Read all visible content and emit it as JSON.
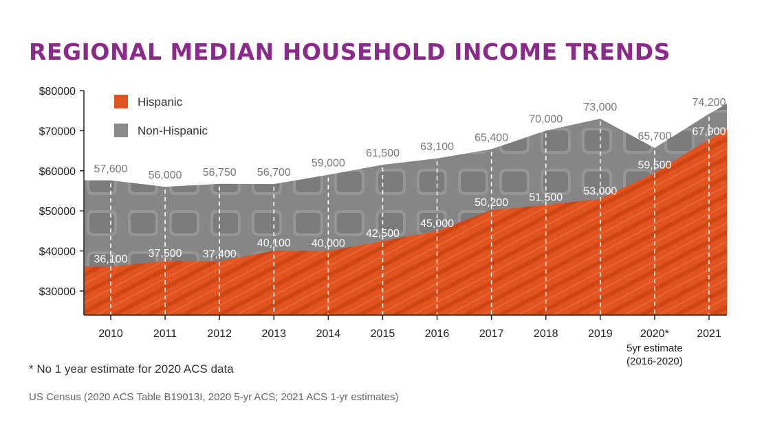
{
  "title": "REGIONAL MEDIAN HOUSEHOLD INCOME TRENDS",
  "footnote": "*  No 1 year estimate for 2020 ACS data",
  "source": "US Census (2020 ACS Table B19013I, 2020 5-yr ACS; 2021 ACS 1-yr estimates)",
  "colors": {
    "title": "#8b2a8a",
    "hispanic": "#e2531f",
    "non_hispanic": "#8a8a8a",
    "label_text": "#ffffff",
    "value_label_above": "#777777",
    "axis": "#222222"
  },
  "chart_data": {
    "type": "area",
    "categories": [
      "2010",
      "2011",
      "2012",
      "2013",
      "2014",
      "2015",
      "2016",
      "2017",
      "2018",
      "2019",
      "2020*",
      "2021"
    ],
    "category_notes": {
      "2020*": [
        "5yr estimate",
        "(2016-2020)"
      ]
    },
    "series": [
      {
        "name": "Hispanic",
        "values": [
          36100,
          37500,
          37400,
          40100,
          40000,
          42500,
          45000,
          50200,
          51500,
          53000,
          59500,
          67900
        ],
        "labels": [
          "36,100",
          "37,500",
          "37,400",
          "40,100",
          "40,000",
          "42,500",
          "45,000",
          "50,200",
          "51,500",
          "53,000",
          "59,500",
          "67,900"
        ]
      },
      {
        "name": "Non-Hispanic",
        "values": [
          57600,
          56000,
          56750,
          56700,
          59000,
          61500,
          63100,
          65400,
          70000,
          73000,
          65700,
          74200
        ],
        "labels": [
          "57,600",
          "56,000",
          "56,750",
          "56,700",
          "59,000",
          "61,500",
          "63,100",
          "65,400",
          "70,000",
          "73,000",
          "65,700",
          "74,200"
        ]
      }
    ],
    "ylim": [
      24000,
      80000
    ],
    "y_ticks": [
      30000,
      40000,
      50000,
      60000,
      70000,
      80000
    ],
    "y_tick_labels": [
      "$30000",
      "$40000",
      "$50000",
      "$60000",
      "$70000",
      "$80000"
    ],
    "grid": false,
    "vertical_dashed_lines": true,
    "legend": {
      "position": "top-left",
      "entries": [
        "Hispanic",
        "Non-Hispanic"
      ]
    }
  }
}
